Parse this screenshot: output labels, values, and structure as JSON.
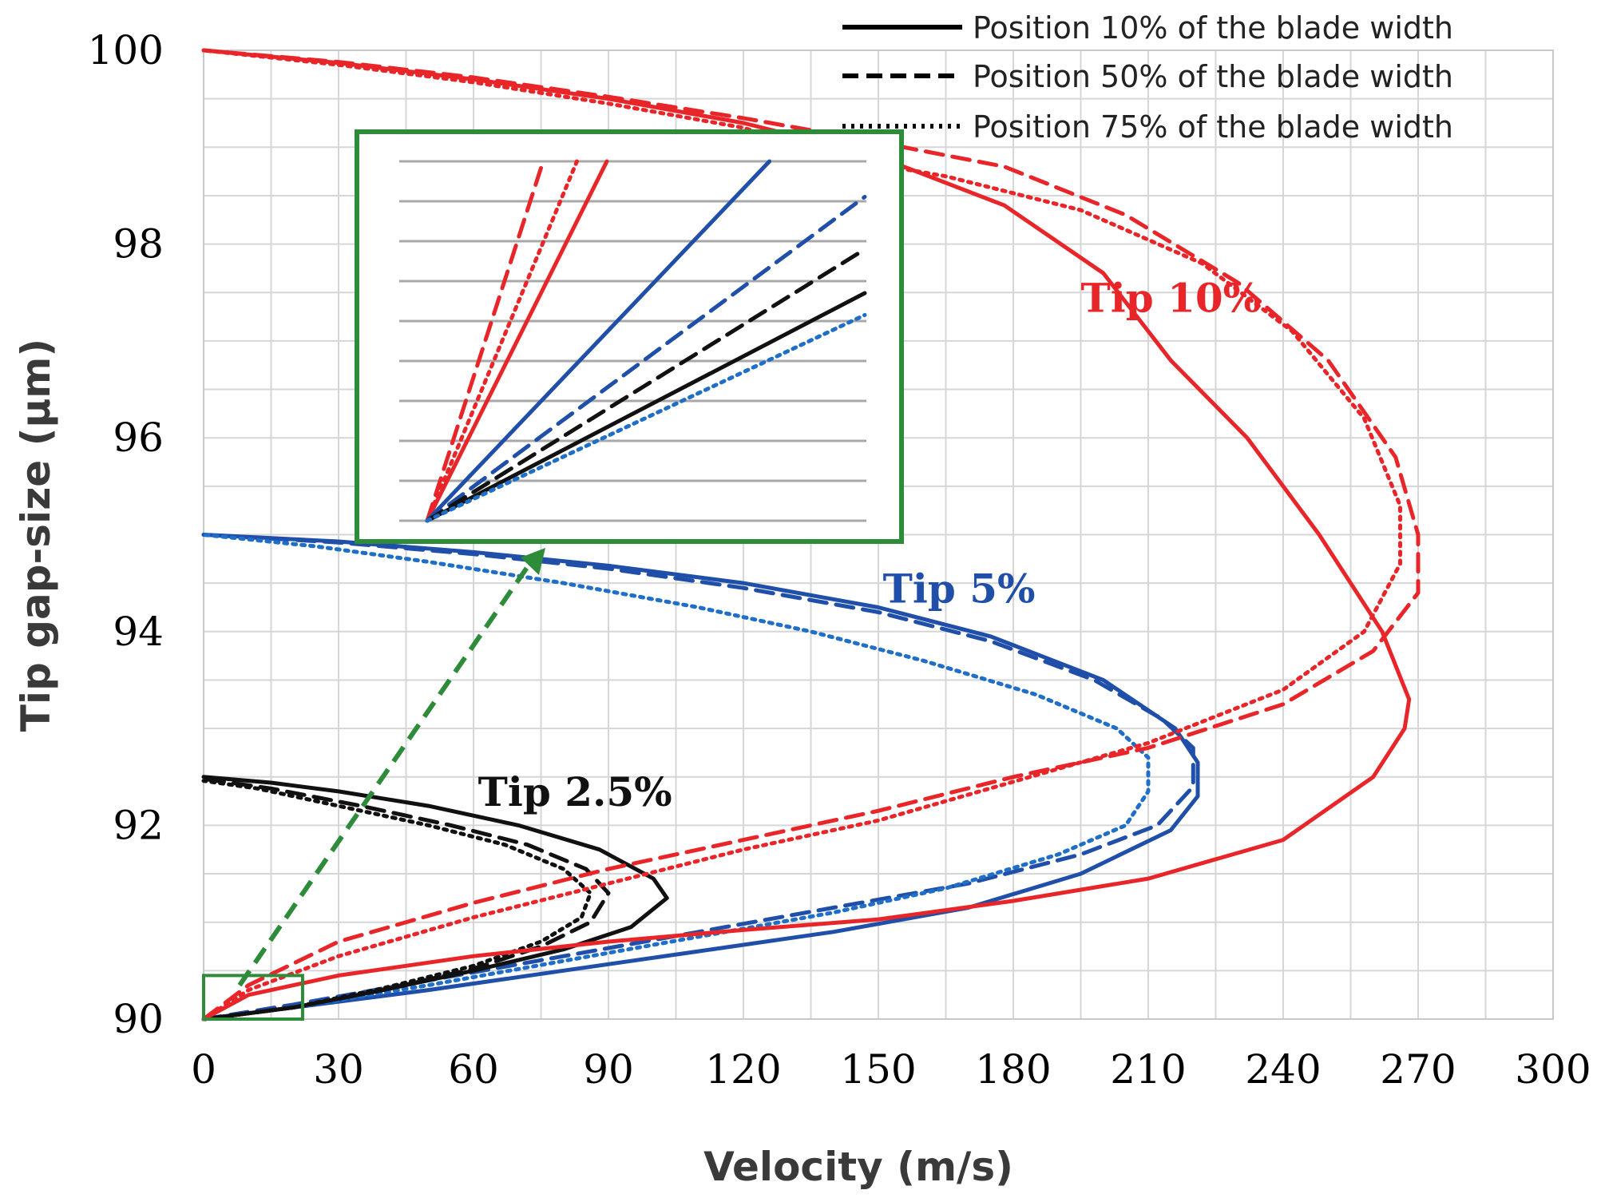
{
  "chart_data": {
    "type": "line",
    "title": "",
    "xlabel": "Velocity (m/s)",
    "ylabel": "Tip gap-size (µm)",
    "xlim": [
      0,
      300
    ],
    "ylim": [
      90,
      100
    ],
    "x_ticks": [
      0,
      30,
      60,
      90,
      120,
      150,
      180,
      210,
      240,
      270,
      300
    ],
    "y_ticks": [
      90,
      92,
      94,
      96,
      98,
      100
    ],
    "grid": true,
    "legend_position": "top-right",
    "legend": [
      {
        "label": "Position 10% of the blade width",
        "dash": "solid"
      },
      {
        "label": "Position 50% of the blade width",
        "dash": "dashed"
      },
      {
        "label": "Position 75% of the blade width",
        "dash": "dotted"
      }
    ],
    "colors": {
      "tip_2_5": "#111111",
      "tip_5": "#1f4fa8",
      "tip_10": "#e8262a",
      "zoom_box": "#2e8b3a"
    },
    "annotations": [
      {
        "text": "Tip 10%",
        "color": "#e8262a",
        "x": 195,
        "y": 97.3
      },
      {
        "text": "Tip 5%",
        "color": "#1f4fa8",
        "x": 151,
        "y": 94.3
      },
      {
        "text": "Tip 2.5%",
        "color": "#111111",
        "x": 61,
        "y": 92.2
      }
    ],
    "series": [
      {
        "group": "Tip 10%",
        "position": "10%",
        "color": "#e8262a",
        "dash": "solid",
        "points": [
          [
            0,
            90
          ],
          [
            10,
            90.25
          ],
          [
            30,
            90.45
          ],
          [
            60,
            90.65
          ],
          [
            90,
            90.8
          ],
          [
            120,
            90.92
          ],
          [
            150,
            91.03
          ],
          [
            180,
            91.22
          ],
          [
            210,
            91.45
          ],
          [
            240,
            91.85
          ],
          [
            260,
            92.5
          ],
          [
            267,
            93.0
          ],
          [
            268,
            93.3
          ],
          [
            262,
            94.0
          ],
          [
            248,
            95.0
          ],
          [
            232,
            96.0
          ],
          [
            215,
            96.8
          ],
          [
            200,
            97.7
          ],
          [
            178,
            98.4
          ],
          [
            150,
            98.9
          ],
          [
            120,
            99.25
          ],
          [
            90,
            99.5
          ],
          [
            60,
            99.7
          ],
          [
            30,
            99.87
          ],
          [
            0,
            100
          ]
        ]
      },
      {
        "group": "Tip 10%",
        "position": "50%",
        "color": "#e8262a",
        "dash": "dashed",
        "points": [
          [
            0,
            90
          ],
          [
            10,
            90.35
          ],
          [
            30,
            90.8
          ],
          [
            60,
            91.2
          ],
          [
            90,
            91.55
          ],
          [
            120,
            91.85
          ],
          [
            150,
            92.15
          ],
          [
            180,
            92.5
          ],
          [
            210,
            92.8
          ],
          [
            240,
            93.25
          ],
          [
            260,
            93.8
          ],
          [
            270,
            94.4
          ],
          [
            270,
            95.0
          ],
          [
            265,
            95.8
          ],
          [
            250,
            96.8
          ],
          [
            230,
            97.6
          ],
          [
            205,
            98.3
          ],
          [
            178,
            98.8
          ],
          [
            150,
            99.05
          ],
          [
            120,
            99.3
          ],
          [
            90,
            99.52
          ],
          [
            60,
            99.72
          ],
          [
            30,
            99.88
          ],
          [
            0,
            100
          ]
        ]
      },
      {
        "group": "Tip 10%",
        "position": "75%",
        "color": "#e8262a",
        "dash": "dotted",
        "points": [
          [
            0,
            90
          ],
          [
            10,
            90.3
          ],
          [
            30,
            90.65
          ],
          [
            60,
            91.05
          ],
          [
            90,
            91.4
          ],
          [
            120,
            91.75
          ],
          [
            150,
            92.05
          ],
          [
            180,
            92.45
          ],
          [
            210,
            92.85
          ],
          [
            240,
            93.4
          ],
          [
            258,
            94.0
          ],
          [
            266,
            94.7
          ],
          [
            266,
            95.3
          ],
          [
            258,
            96.2
          ],
          [
            242,
            97.1
          ],
          [
            222,
            97.8
          ],
          [
            195,
            98.35
          ],
          [
            165,
            98.7
          ],
          [
            140,
            98.9
          ],
          [
            120,
            99.2
          ],
          [
            90,
            99.45
          ],
          [
            60,
            99.67
          ],
          [
            30,
            99.85
          ],
          [
            0,
            100
          ]
        ]
      },
      {
        "group": "Tip 5%",
        "position": "10%",
        "color": "#1f4fa8",
        "dash": "solid",
        "points": [
          [
            0,
            90
          ],
          [
            20,
            90.12
          ],
          [
            50,
            90.3
          ],
          [
            80,
            90.5
          ],
          [
            110,
            90.7
          ],
          [
            140,
            90.9
          ],
          [
            170,
            91.15
          ],
          [
            195,
            91.5
          ],
          [
            215,
            91.95
          ],
          [
            221,
            92.3
          ],
          [
            221,
            92.65
          ],
          [
            216,
            93.0
          ],
          [
            200,
            93.5
          ],
          [
            175,
            93.95
          ],
          [
            150,
            94.25
          ],
          [
            120,
            94.5
          ],
          [
            90,
            94.68
          ],
          [
            60,
            94.82
          ],
          [
            30,
            94.93
          ],
          [
            0,
            95
          ]
        ]
      },
      {
        "group": "Tip 5%",
        "position": "50%",
        "color": "#1f4fa8",
        "dash": "dashed",
        "points": [
          [
            0,
            90
          ],
          [
            20,
            90.15
          ],
          [
            50,
            90.4
          ],
          [
            80,
            90.65
          ],
          [
            110,
            90.9
          ],
          [
            140,
            91.15
          ],
          [
            170,
            91.4
          ],
          [
            195,
            91.7
          ],
          [
            212,
            92.0
          ],
          [
            220,
            92.4
          ],
          [
            220,
            92.8
          ],
          [
            213,
            93.1
          ],
          [
            198,
            93.5
          ],
          [
            175,
            93.9
          ],
          [
            150,
            94.2
          ],
          [
            120,
            94.45
          ],
          [
            90,
            94.65
          ],
          [
            60,
            94.8
          ],
          [
            30,
            94.92
          ],
          [
            0,
            95
          ]
        ]
      },
      {
        "group": "Tip 5%",
        "position": "75%",
        "color": "#1f6fc8",
        "dash": "dotted",
        "points": [
          [
            0,
            90
          ],
          [
            20,
            90.12
          ],
          [
            50,
            90.35
          ],
          [
            80,
            90.6
          ],
          [
            110,
            90.85
          ],
          [
            140,
            91.1
          ],
          [
            165,
            91.35
          ],
          [
            190,
            91.7
          ],
          [
            205,
            92.0
          ],
          [
            210,
            92.35
          ],
          [
            210,
            92.7
          ],
          [
            203,
            93.0
          ],
          [
            185,
            93.35
          ],
          [
            160,
            93.7
          ],
          [
            135,
            94.0
          ],
          [
            110,
            94.25
          ],
          [
            80,
            94.5
          ],
          [
            50,
            94.72
          ],
          [
            25,
            94.88
          ],
          [
            0,
            95
          ]
        ]
      },
      {
        "group": "Tip 2.5%",
        "position": "10%",
        "color": "#111111",
        "dash": "solid",
        "points": [
          [
            0,
            90
          ],
          [
            20,
            90.12
          ],
          [
            40,
            90.3
          ],
          [
            60,
            90.5
          ],
          [
            80,
            90.72
          ],
          [
            95,
            90.95
          ],
          [
            103,
            91.25
          ],
          [
            100,
            91.45
          ],
          [
            88,
            91.75
          ],
          [
            70,
            92.0
          ],
          [
            50,
            92.2
          ],
          [
            30,
            92.35
          ],
          [
            15,
            92.44
          ],
          [
            0,
            92.5
          ]
        ]
      },
      {
        "group": "Tip 2.5%",
        "position": "50%",
        "color": "#111111",
        "dash": "dashed",
        "points": [
          [
            0,
            90
          ],
          [
            20,
            90.12
          ],
          [
            40,
            90.3
          ],
          [
            60,
            90.52
          ],
          [
            75,
            90.75
          ],
          [
            86,
            91.0
          ],
          [
            90,
            91.3
          ],
          [
            85,
            91.55
          ],
          [
            72,
            91.8
          ],
          [
            55,
            92.0
          ],
          [
            35,
            92.2
          ],
          [
            15,
            92.38
          ],
          [
            0,
            92.48
          ]
        ]
      },
      {
        "group": "Tip 2.5%",
        "position": "75%",
        "color": "#111111",
        "dash": "dotted",
        "points": [
          [
            0,
            90
          ],
          [
            20,
            90.12
          ],
          [
            40,
            90.32
          ],
          [
            60,
            90.55
          ],
          [
            75,
            90.8
          ],
          [
            84,
            91.05
          ],
          [
            86,
            91.3
          ],
          [
            80,
            91.55
          ],
          [
            67,
            91.8
          ],
          [
            50,
            92.0
          ],
          [
            30,
            92.2
          ],
          [
            12,
            92.38
          ],
          [
            0,
            92.46
          ]
        ]
      }
    ],
    "inset": {
      "description_region": {
        "x": [
          0,
          22
        ],
        "y": [
          90,
          90.45
        ]
      },
      "series": [
        {
          "color": "#e8262a",
          "dash": "dashed",
          "slope": 3.1
        },
        {
          "color": "#e8262a",
          "dash": "dotted",
          "slope": 2.4
        },
        {
          "color": "#e8262a",
          "dash": "solid",
          "slope": 2.0
        },
        {
          "color": "#1f4fa8",
          "dash": "solid",
          "slope": 1.05
        },
        {
          "color": "#1f4fa8",
          "dash": "dashed",
          "slope": 0.74
        },
        {
          "color": "#111111",
          "dash": "dashed",
          "slope": 0.62
        },
        {
          "color": "#111111",
          "dash": "solid",
          "slope": 0.52
        },
        {
          "color": "#1f6fc8",
          "dash": "dotted",
          "slope": 0.47
        }
      ]
    }
  }
}
